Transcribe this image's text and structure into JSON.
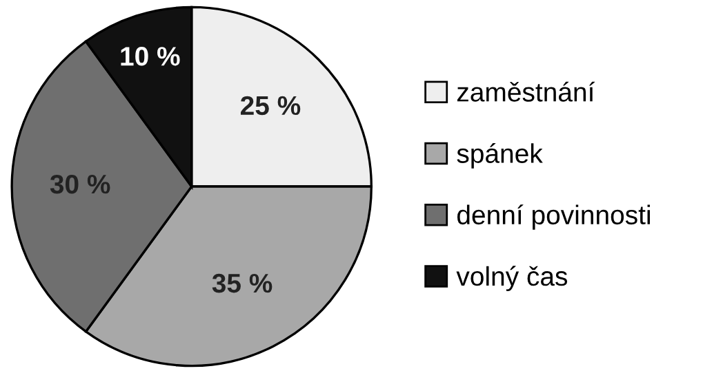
{
  "chart_data": {
    "type": "pie",
    "categories": [
      "zaměstnání",
      "spánek",
      "denní povinnosti",
      "volný čas"
    ],
    "values": [
      25,
      35,
      30,
      10
    ],
    "colors": [
      "#eeeeee",
      "#a8a8a8",
      "#6f6f6f",
      "#111111"
    ],
    "value_labels": [
      "25 %",
      "35 %",
      "30 %",
      "10 %"
    ],
    "legend": "right"
  }
}
